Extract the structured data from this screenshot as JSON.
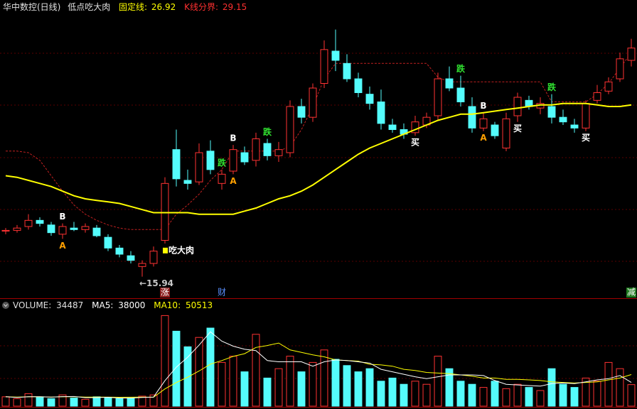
{
  "chart_data": [
    {
      "type": "candlestick",
      "title": "华中数控(日线)",
      "indicator": "低点吃大肉",
      "fixed_line": {
        "label": "固定线:",
        "value": 26.92,
        "color": "#ffff00"
      },
      "boundary": {
        "label": "K线分界:",
        "value": 29.15,
        "color": "#ff3030"
      },
      "ylim": [
        15,
        33
      ],
      "up_color": "#ff3232",
      "down_color": "#54fcfc",
      "open": [
        18.9,
        18.95,
        19.2,
        19.6,
        19.3,
        18.7,
        19.1,
        19.0,
        19.1,
        18.5,
        17.8,
        17.3,
        16.6,
        16.8,
        18.3,
        24.2,
        22.2,
        22.1,
        24.1,
        22.0,
        22.8,
        24.0,
        23.5,
        24.6,
        23.8,
        24.0,
        27.0,
        26.3,
        28.5,
        30.6,
        29.8,
        28.8,
        27.8,
        27.3,
        25.8,
        25.5,
        25.3,
        25.8,
        26.4,
        28.8,
        28.2,
        27.0,
        25.6,
        25.8,
        24.3,
        26.4,
        27.4,
        26.9,
        27.0,
        26.3,
        25.8,
        25.6,
        27.4,
        28.0,
        28.8,
        30.0
      ],
      "high": [
        19.1,
        19.3,
        20.0,
        19.8,
        19.5,
        19.4,
        19.5,
        19.4,
        19.3,
        18.7,
        18.0,
        17.6,
        17.0,
        17.9,
        22.4,
        25.5,
        22.9,
        24.6,
        24.8,
        22.9,
        24.5,
        24.4,
        25.3,
        24.9,
        24.7,
        27.4,
        27.5,
        28.5,
        31.3,
        32.0,
        30.4,
        29.2,
        28.3,
        28.1,
        26.2,
        25.9,
        26.4,
        26.6,
        29.2,
        29.6,
        29.0,
        27.6,
        26.6,
        26.0,
        26.6,
        27.9,
        27.7,
        27.6,
        27.8,
        26.8,
        26.2,
        27.4,
        28.4,
        28.9,
        30.5,
        31.4
      ],
      "low": [
        18.7,
        18.8,
        19.0,
        19.2,
        18.6,
        18.4,
        18.9,
        18.8,
        18.5,
        17.6,
        17.2,
        16.8,
        15.94,
        16.6,
        18.1,
        21.8,
        21.6,
        21.9,
        22.6,
        21.6,
        22.6,
        23.2,
        23.1,
        23.5,
        23.4,
        23.7,
        25.9,
        26.0,
        28.2,
        29.3,
        28.6,
        27.6,
        26.8,
        25.5,
        25.3,
        24.9,
        25.1,
        25.6,
        26.1,
        28.0,
        27.0,
        25.3,
        25.4,
        24.9,
        24.1,
        26.0,
        26.8,
        26.5,
        25.9,
        25.8,
        25.3,
        25.4,
        27.2,
        27.8,
        28.6,
        29.6
      ],
      "close": [
        18.95,
        19.1,
        19.6,
        19.4,
        18.8,
        19.2,
        19.0,
        19.2,
        18.6,
        17.8,
        17.4,
        17.0,
        16.8,
        17.6,
        22.0,
        22.3,
        22.0,
        24.0,
        22.9,
        22.6,
        24.2,
        23.4,
        24.9,
        23.8,
        24.2,
        27.0,
        26.3,
        28.2,
        30.7,
        30.0,
        28.8,
        27.9,
        27.2,
        25.9,
        25.5,
        25.2,
        26.0,
        26.3,
        28.8,
        28.2,
        27.3,
        25.6,
        26.2,
        25.1,
        26.2,
        27.6,
        27.0,
        27.2,
        26.3,
        26.0,
        25.6,
        27.2,
        27.9,
        28.6,
        30.1,
        30.8
      ],
      "ma": {
        "color": "#ffff00",
        "values": [
          22.5,
          22.4,
          22.2,
          22.0,
          21.8,
          21.5,
          21.2,
          21.0,
          20.9,
          20.8,
          20.7,
          20.5,
          20.3,
          20.1,
          20.1,
          20.1,
          20.1,
          20.0,
          20.0,
          20.0,
          20.0,
          20.2,
          20.4,
          20.7,
          21.0,
          21.2,
          21.5,
          21.9,
          22.4,
          22.9,
          23.4,
          23.9,
          24.3,
          24.6,
          24.9,
          25.2,
          25.5,
          25.8,
          26.1,
          26.3,
          26.5,
          26.5,
          26.6,
          26.7,
          26.8,
          26.9,
          27.0,
          27.1,
          27.1,
          27.2,
          27.2,
          27.2,
          27.1,
          27.0,
          27.0,
          27.1
        ]
      },
      "trail": {
        "color": "#c02020",
        "values": [
          24.1,
          24.1,
          24.0,
          23.5,
          22.5,
          21.5,
          20.6,
          20.0,
          19.6,
          19.3,
          19.1,
          19.0,
          19.0,
          19.0,
          19.0,
          20.0,
          20.6,
          21.3,
          22.2,
          22.9,
          24.1,
          24.1,
          24.1,
          24.1,
          24.1,
          24.4,
          25.5,
          27.0,
          28.8,
          29.8,
          29.8,
          29.8,
          29.8,
          29.8,
          29.8,
          29.8,
          29.8,
          29.8,
          28.9,
          28.6,
          28.6,
          28.6,
          28.6,
          28.6,
          28.6,
          28.6,
          28.6,
          28.6,
          27.3,
          27.3,
          27.3,
          27.3,
          27.8,
          28.5,
          29.5,
          30.5
        ]
      },
      "signals": [
        {
          "text": "B",
          "at": 5,
          "side": "above",
          "color": "#ffffff"
        },
        {
          "text": "A",
          "at": 5,
          "side": "below",
          "color": "#ffa000"
        },
        {
          "text": "←15.94",
          "at": 12,
          "side": "below",
          "color": "#c8c8c8",
          "anchor": "start"
        },
        {
          "text": "吃大肉",
          "at": 14,
          "side": "below",
          "color": "#ffffff",
          "anchor": "start",
          "icon_color": "#ffff00"
        },
        {
          "text": "跌",
          "at": 19,
          "side": "above",
          "color": "#30e030"
        },
        {
          "text": "B",
          "at": 20,
          "side": "above",
          "color": "#ffffff"
        },
        {
          "text": "A",
          "at": 20,
          "side": "below",
          "color": "#ffa000"
        },
        {
          "text": "跌",
          "at": 23,
          "side": "above",
          "color": "#30e030"
        },
        {
          "text": "买",
          "at": 36,
          "side": "below",
          "color": "#ffffff"
        },
        {
          "text": "跌",
          "at": 40,
          "side": "above",
          "color": "#30e030"
        },
        {
          "text": "B",
          "at": 42,
          "side": "above",
          "color": "#ffffff"
        },
        {
          "text": "A",
          "at": 42,
          "side": "below",
          "color": "#ffa000"
        },
        {
          "text": "买",
          "at": 45,
          "side": "below",
          "color": "#ffffff"
        },
        {
          "text": "跌",
          "at": 48,
          "side": "above",
          "color": "#30e030"
        },
        {
          "text": "买",
          "at": 51,
          "side": "below",
          "color": "#ffffff"
        }
      ],
      "events": [
        {
          "text": "涨",
          "at": 14,
          "color": "#ffffff",
          "background": "#8b1a1a"
        },
        {
          "text": "财",
          "at": 19,
          "color": "#5a90ff"
        },
        {
          "text": "减",
          "at": 55,
          "color": "#ffffff",
          "background": "#1f7a1f"
        }
      ]
    },
    {
      "type": "bar",
      "title": "VOLUME:",
      "ylim": [
        0,
        150000
      ],
      "values": [
        15000,
        12000,
        20000,
        14000,
        12000,
        18000,
        13000,
        11000,
        15000,
        14000,
        12000,
        13000,
        16000,
        18000,
        145000,
        120000,
        95000,
        110000,
        125000,
        70000,
        80000,
        55000,
        115000,
        45000,
        60000,
        80000,
        55000,
        70000,
        90000,
        75000,
        65000,
        55000,
        60000,
        40000,
        45000,
        35000,
        40000,
        35000,
        80000,
        60000,
        40000,
        35000,
        30000,
        40000,
        28000,
        35000,
        30000,
        25000,
        60000,
        35000,
        30000,
        45000,
        40000,
        70000,
        60000,
        34487
      ],
      "ma5": {
        "label": "MA5:",
        "color": "#ffffff",
        "values": [
          15000,
          14000,
          15000,
          15000,
          14600,
          15200,
          15400,
          13600,
          13800,
          14200,
          13000,
          13000,
          14000,
          14600,
          40800,
          62400,
          78400,
          97600,
          119000,
          104000,
          96000,
          91000,
          89000,
          73000,
          71000,
          71000,
          71000,
          64000,
          71000,
          74000,
          73000,
          71000,
          69000,
          59000,
          55000,
          51000,
          47000,
          44000,
          47000,
          50000,
          50000,
          50000,
          49000,
          41000,
          35000,
          34000,
          33000,
          32000,
          36000,
          37000,
          36000,
          39000,
          42000,
          44000,
          49000,
          38000
        ]
      },
      "ma10": {
        "label": "MA10:",
        "color": "#ffff00",
        "values": [
          15000,
          14500,
          15000,
          15000,
          14600,
          15200,
          15000,
          14600,
          14600,
          14400,
          14200,
          14300,
          14600,
          14300,
          27600,
          37800,
          46400,
          56300,
          67300,
          72900,
          79700,
          84000,
          94000,
          97000,
          101000,
          90000,
          86000,
          82000,
          79000,
          74000,
          73000,
          72000,
          67000,
          66000,
          64000,
          59000,
          57000,
          54000,
          53000,
          52000,
          50000,
          48000,
          45000,
          45000,
          43000,
          43000,
          42000,
          41000,
          39000,
          38000,
          37000,
          38000,
          39000,
          42000,
          45000,
          50513
        ]
      }
    }
  ]
}
